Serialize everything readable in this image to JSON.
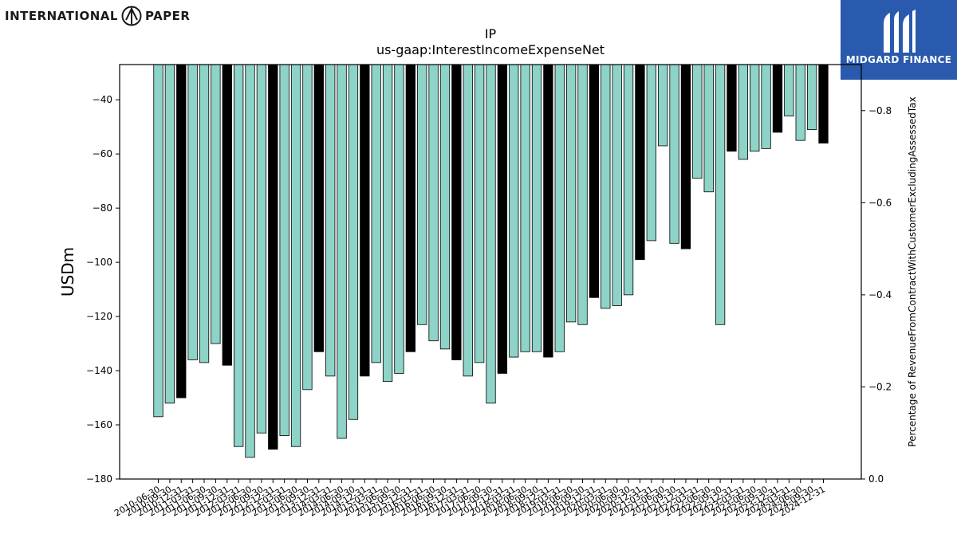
{
  "branding": {
    "left_word_1": "INTERNATIONAL",
    "left_word_2": "PAPER",
    "left_logo_icon": "international-paper-logo-icon",
    "right_name": "MIDGARD FINANCE",
    "right_logo_icon": "midgard-finance-logo-icon",
    "right_bg_color": "#2a5aad"
  },
  "chart_data": {
    "type": "bar",
    "title": "IP",
    "subtitle": "us-gaap:InterestIncomeExpenseNet",
    "ylabel": "USDm",
    "y2label": "Percentage of RevenueFromContractWithCustomerExcludingAssessedTax",
    "ylim": [
      -180,
      -27
    ],
    "y2lim": [
      0.0,
      -0.9
    ],
    "yticks": [
      "−40",
      "−60",
      "−80",
      "−100",
      "−120",
      "−140",
      "−160",
      "−180"
    ],
    "y2ticks": [
      "−0.8",
      "−0.6",
      "−0.4",
      "−0.2",
      "0.0"
    ],
    "colors": {
      "quarter": "#8dd3c7",
      "annual": "#000000"
    },
    "categories": [
      "2010-06-30",
      "2010-09-30",
      "2010-12-31",
      "2011-03-31",
      "2011-06-30",
      "2011-09-30",
      "2011-12-31",
      "2012-03-31",
      "2012-06-30",
      "2012-09-30",
      "2012-12-31",
      "2013-03-31",
      "2013-06-30",
      "2013-09-30",
      "2013-12-31",
      "2014-03-31",
      "2014-06-30",
      "2014-09-30",
      "2014-12-31",
      "2015-03-31",
      "2015-06-30",
      "2015-09-30",
      "2015-12-31",
      "2016-03-31",
      "2016-06-30",
      "2016-09-30",
      "2016-12-31",
      "2017-03-31",
      "2017-06-30",
      "2017-09-30",
      "2017-12-31",
      "2018-03-31",
      "2018-06-30",
      "2018-09-30",
      "2018-12-31",
      "2019-03-31",
      "2019-06-30",
      "2019-09-30",
      "2019-12-31",
      "2020-03-31",
      "2020-06-30",
      "2020-09-30",
      "2020-12-31",
      "2021-03-31",
      "2021-06-30",
      "2021-09-30",
      "2021-12-31",
      "2022-03-31",
      "2022-06-30",
      "2022-09-30",
      "2022-12-31",
      "2023-03-31",
      "2023-06-30",
      "2023-09-30",
      "2023-12-31",
      "2024-03-31",
      "2024-06-30",
      "2024-09-30",
      "2024-12-31"
    ],
    "values": [
      -157,
      -152,
      -150,
      -136,
      -137,
      -130,
      -138,
      -168,
      -172,
      -163,
      -169,
      -164,
      -168,
      -147,
      -133,
      -142,
      -165,
      -158,
      -142,
      -137,
      -144,
      -141,
      -133,
      -123,
      -129,
      -132,
      -136,
      -142,
      -137,
      -152,
      -141,
      -135,
      -133,
      -133,
      -135,
      -133,
      -122,
      -123,
      -113,
      -117,
      -116,
      -112,
      -99,
      -92,
      -57,
      -93,
      -95,
      -69,
      -74,
      -123,
      -59,
      -62,
      -59,
      -58,
      -52,
      -46,
      -55,
      -51,
      -56
    ],
    "annual": [
      false,
      false,
      true,
      false,
      false,
      false,
      true,
      false,
      false,
      false,
      true,
      false,
      false,
      false,
      true,
      false,
      false,
      false,
      true,
      false,
      false,
      false,
      true,
      false,
      false,
      false,
      true,
      false,
      false,
      false,
      true,
      false,
      false,
      false,
      true,
      false,
      false,
      false,
      true,
      false,
      false,
      false,
      true,
      false,
      false,
      false,
      true,
      false,
      false,
      false,
      true,
      false,
      false,
      false,
      true,
      false,
      false,
      false,
      true
    ]
  }
}
